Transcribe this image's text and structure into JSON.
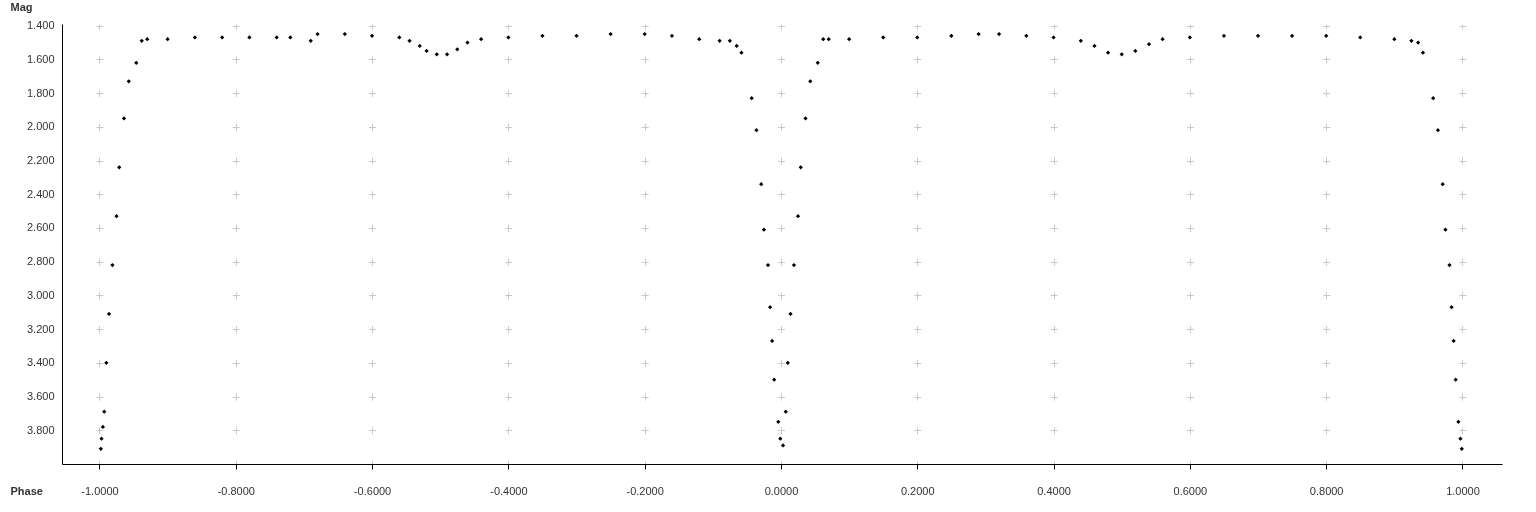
{
  "chart_data": {
    "type": "scatter",
    "xlabel": "Phase",
    "ylabel": "Mag",
    "x": [
      -0.998,
      -0.997,
      -0.995,
      -0.993,
      -0.99,
      -0.986,
      -0.981,
      -0.975,
      -0.971,
      -0.964,
      -0.957,
      -0.946,
      -0.938,
      -0.93,
      -0.9,
      -0.86,
      -0.82,
      -0.78,
      -0.74,
      -0.72,
      -0.69,
      -0.68,
      -0.64,
      -0.6,
      -0.56,
      -0.545,
      -0.53,
      -0.52,
      -0.505,
      -0.49,
      -0.475,
      -0.46,
      -0.44,
      -0.4,
      -0.35,
      -0.3,
      -0.25,
      -0.2,
      -0.16,
      -0.12,
      -0.09,
      -0.075,
      -0.065,
      -0.058,
      -0.043,
      -0.036,
      -0.029,
      -0.025,
      -0.019,
      -0.016,
      -0.013,
      -0.01,
      -0.004,
      -0.001,
      0.003,
      0.007,
      0.01,
      0.014,
      0.019,
      0.025,
      0.029,
      0.036,
      0.043,
      0.054,
      0.062,
      0.07,
      0.1,
      0.15,
      0.2,
      0.25,
      0.29,
      0.32,
      0.36,
      0.4,
      0.44,
      0.46,
      0.48,
      0.5,
      0.52,
      0.54,
      0.56,
      0.6,
      0.65,
      0.7,
      0.75,
      0.8,
      0.85,
      0.9,
      0.925,
      0.935,
      0.942,
      0.957,
      0.964,
      0.971,
      0.975,
      0.981,
      0.984,
      0.987,
      0.99,
      0.994,
      0.997,
      0.999
    ],
    "values": [
      3.91,
      3.85,
      3.78,
      3.69,
      3.4,
      3.11,
      2.82,
      2.53,
      2.24,
      1.95,
      1.73,
      1.62,
      1.49,
      1.48,
      1.48,
      1.47,
      1.47,
      1.47,
      1.47,
      1.47,
      1.49,
      1.45,
      1.45,
      1.46,
      1.47,
      1.49,
      1.52,
      1.55,
      1.57,
      1.57,
      1.54,
      1.5,
      1.48,
      1.47,
      1.46,
      1.46,
      1.45,
      1.45,
      1.46,
      1.48,
      1.49,
      1.49,
      1.52,
      1.56,
      1.83,
      2.02,
      2.34,
      2.61,
      2.82,
      3.07,
      3.27,
      3.5,
      3.75,
      3.85,
      3.89,
      3.69,
      3.4,
      3.11,
      2.82,
      2.53,
      2.24,
      1.95,
      1.73,
      1.62,
      1.48,
      1.48,
      1.48,
      1.47,
      1.47,
      1.46,
      1.45,
      1.45,
      1.46,
      1.47,
      1.49,
      1.52,
      1.56,
      1.57,
      1.55,
      1.51,
      1.48,
      1.47,
      1.46,
      1.46,
      1.46,
      1.46,
      1.47,
      1.48,
      1.49,
      1.5,
      1.56,
      1.83,
      2.02,
      2.34,
      2.61,
      2.82,
      3.07,
      3.27,
      3.5,
      3.75,
      3.85,
      3.91
    ],
    "color": "#000000",
    "marker": "diamond",
    "grid": true,
    "xlim": [
      -1.055,
      1.058
    ],
    "ylim": [
      4.0,
      1.39
    ],
    "xticks": [
      {
        "value": -1.0,
        "label": "-1.0000"
      },
      {
        "value": -0.8,
        "label": "-0.8000"
      },
      {
        "value": -0.6,
        "label": "-0.6000"
      },
      {
        "value": -0.4,
        "label": "-0.4000"
      },
      {
        "value": -0.2,
        "label": "-0.2000"
      },
      {
        "value": 0.0,
        "label": "0.0000"
      },
      {
        "value": 0.2,
        "label": "0.2000"
      },
      {
        "value": 0.4,
        "label": "0.4000"
      },
      {
        "value": 0.6,
        "label": "0.6000"
      },
      {
        "value": 0.8,
        "label": "0.8000"
      },
      {
        "value": 1.0,
        "label": "1.0000"
      }
    ],
    "yticks": [
      {
        "value": 1.4,
        "label": "1.400"
      },
      {
        "value": 1.6,
        "label": "1.600"
      },
      {
        "value": 1.8,
        "label": "1.800"
      },
      {
        "value": 2.0,
        "label": "2.000"
      },
      {
        "value": 2.2,
        "label": "2.200"
      },
      {
        "value": 2.4,
        "label": "2.400"
      },
      {
        "value": 2.6,
        "label": "2.600"
      },
      {
        "value": 2.8,
        "label": "2.800"
      },
      {
        "value": 3.0,
        "label": "3.000"
      },
      {
        "value": 3.2,
        "label": "3.200"
      },
      {
        "value": 3.4,
        "label": "3.400"
      },
      {
        "value": 3.6,
        "label": "3.600"
      },
      {
        "value": 3.8,
        "label": "3.800"
      }
    ]
  }
}
